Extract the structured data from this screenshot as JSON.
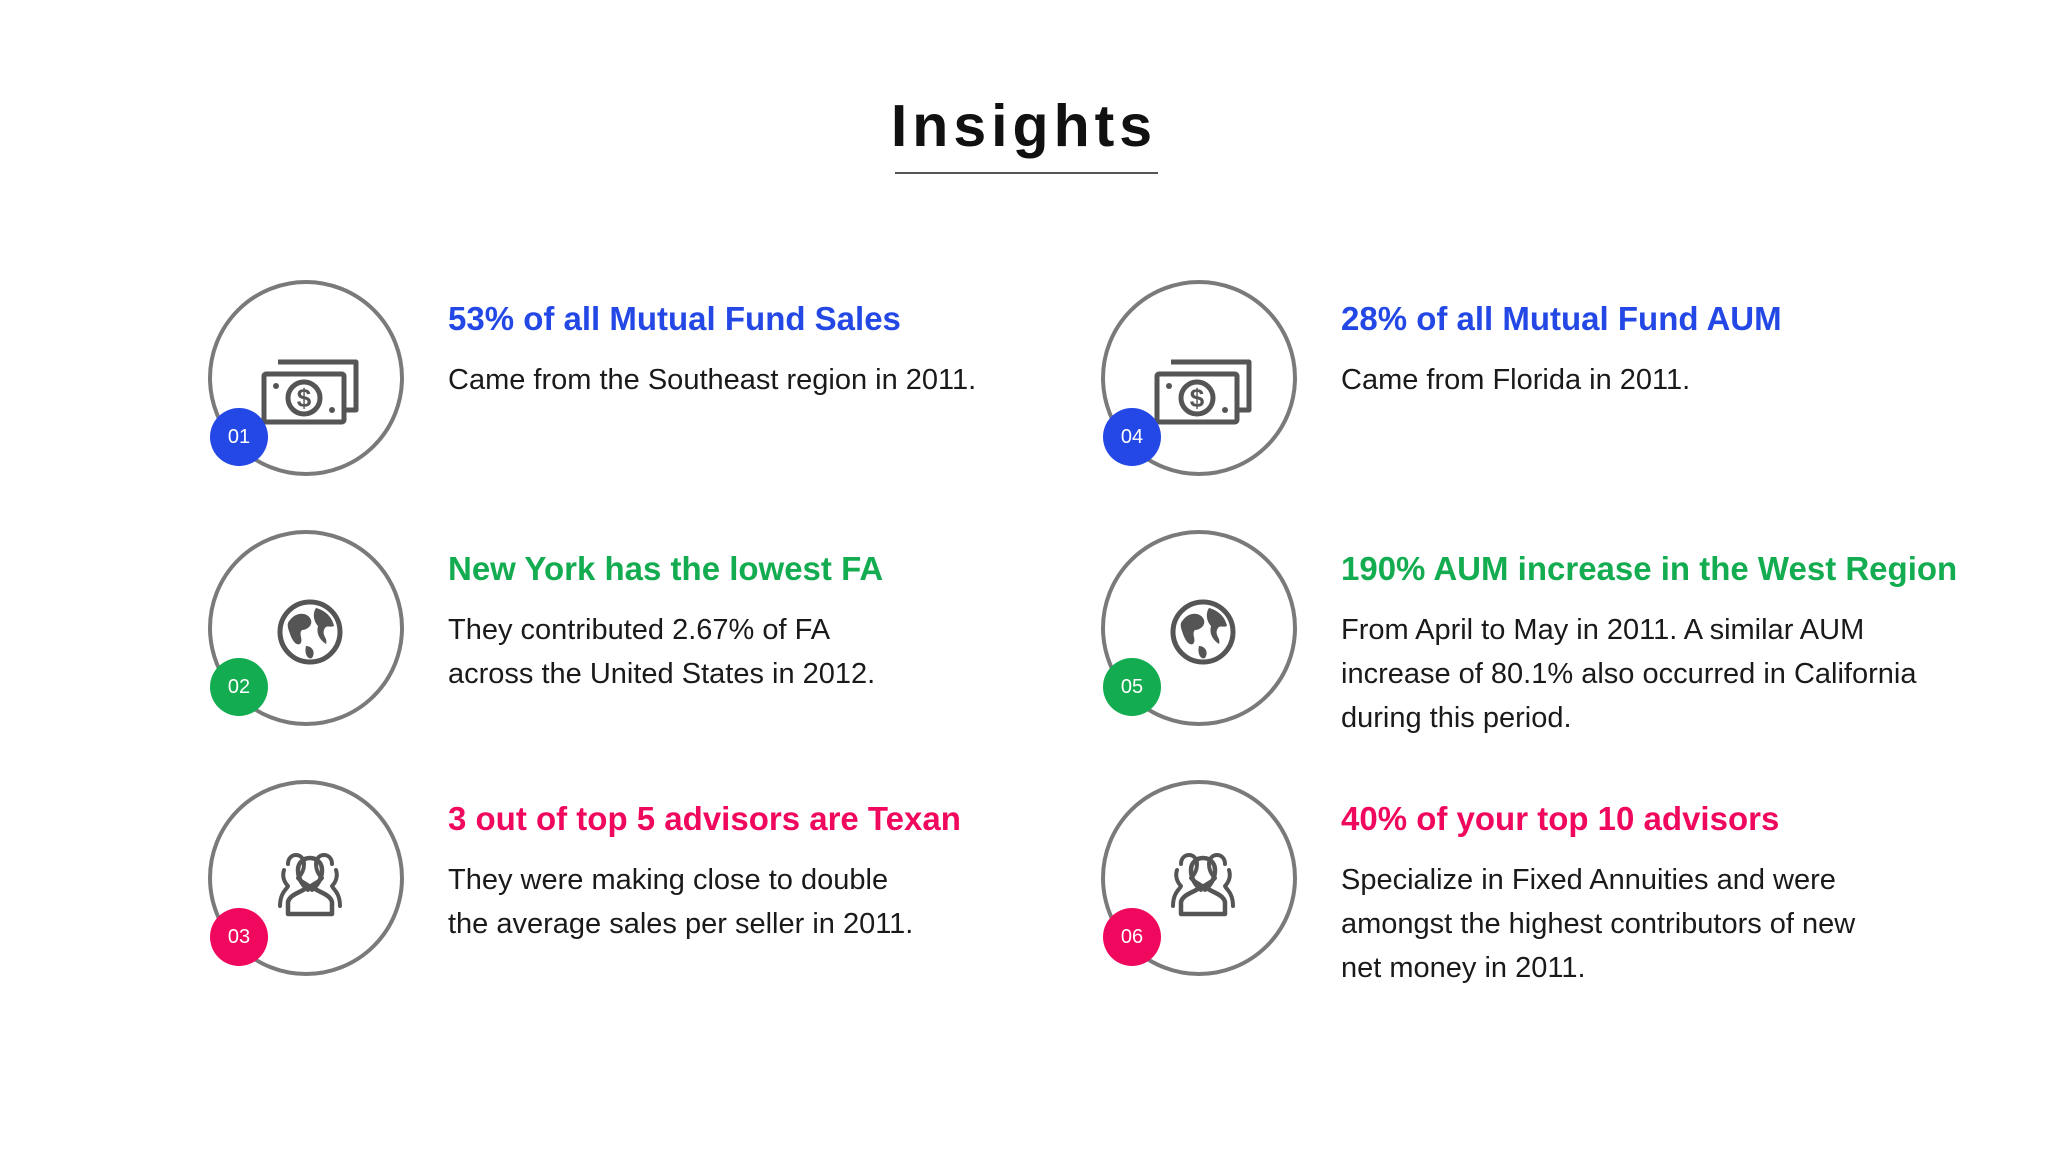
{
  "page": {
    "title": "Insights"
  },
  "colors": {
    "blue": "#2348e6",
    "green": "#13ac50",
    "pink": "#f0085e",
    "circle_border": "#7a7a7a",
    "icon": "#555555"
  },
  "cards": [
    {
      "number": "01",
      "icon": "money-icon",
      "heading": "53% of all Mutual Fund Sales",
      "lines": [
        "Came from the Southeast region in 2011."
      ]
    },
    {
      "number": "02",
      "icon": "globe-icon",
      "heading": "New York has the lowest FA",
      "lines": [
        "They contributed 2.67% of FA",
        "across the United States in 2012."
      ]
    },
    {
      "number": "03",
      "icon": "users-icon",
      "heading": "3 out of top 5 advisors are Texan",
      "lines": [
        "They were making close to double",
        "the average sales per seller in 2011."
      ]
    },
    {
      "number": "04",
      "icon": "money-icon",
      "heading": "28% of all Mutual Fund AUM",
      "lines": [
        "Came from Florida in 2011."
      ]
    },
    {
      "number": "05",
      "icon": "globe-icon",
      "heading": "190% AUM increase in the West Region",
      "lines": [
        "From April to May in 2011.  A similar AUM",
        "increase of 80.1% also occurred in California",
        "during this period."
      ]
    },
    {
      "number": "06",
      "icon": "users-icon",
      "heading": "40% of your top 10 advisors",
      "lines": [
        "Specialize in Fixed Annuities and were",
        "amongst the highest contributors of new",
        "net money in 2011."
      ]
    }
  ]
}
